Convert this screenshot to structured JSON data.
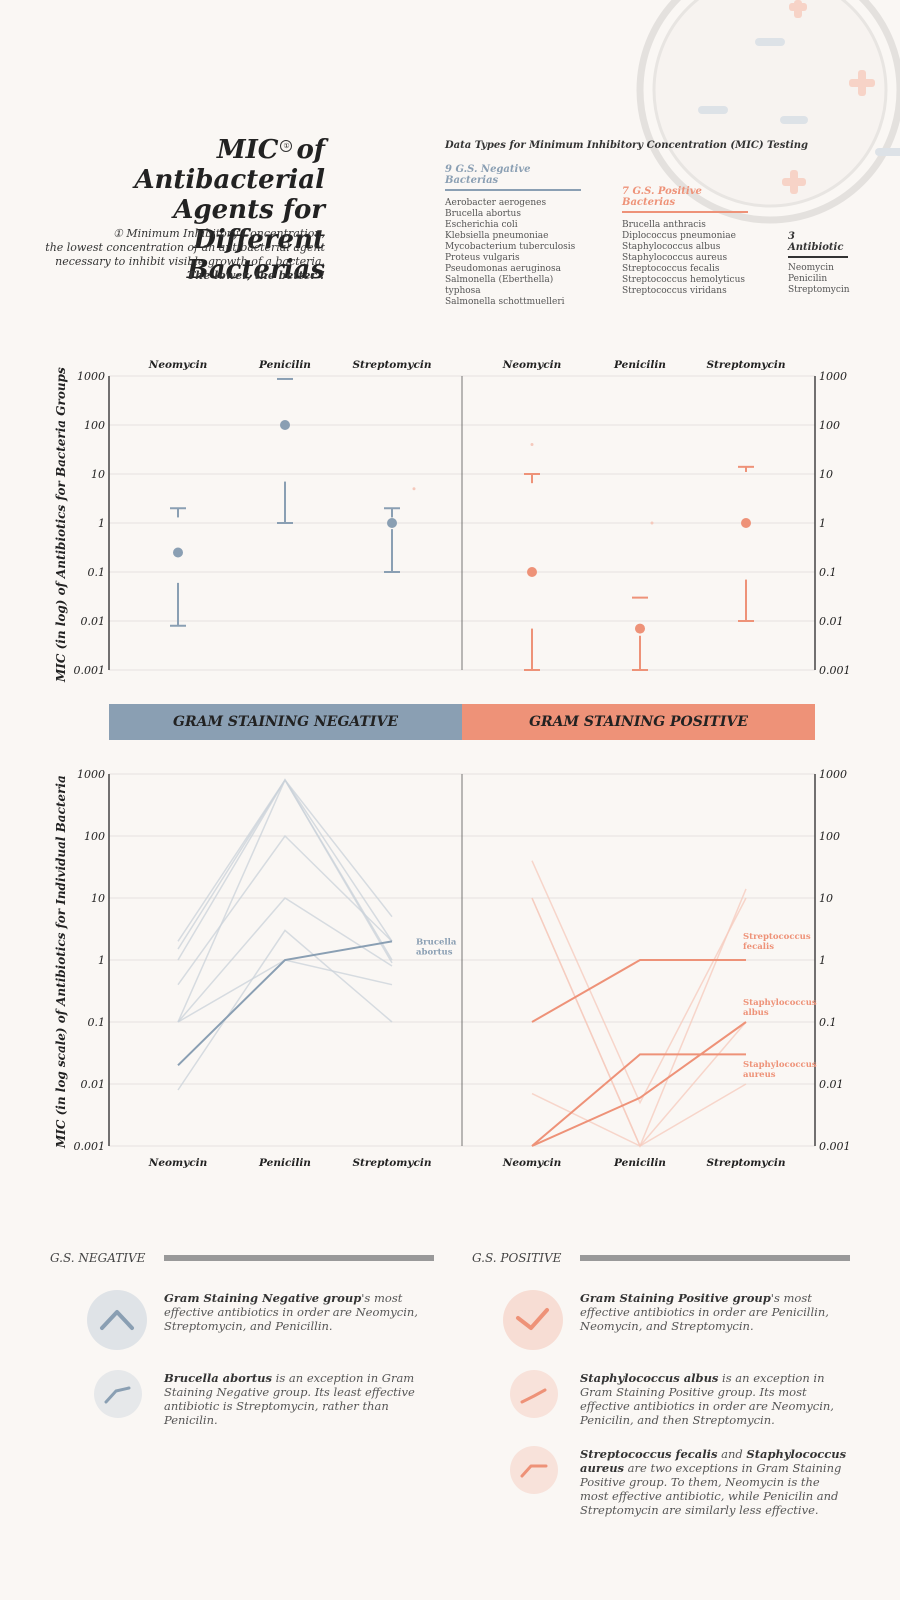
{
  "title": {
    "line1_pre": "MIC",
    "sup_mark": "①",
    "line1_post": "of Antibacterial",
    "line2": "Agents  for Different",
    "line3": "Bacterias"
  },
  "definition": {
    "mark": "①",
    "line1": "Minimum Inhibitory Concentration,",
    "line2": "the lowest concentration of an antibacterial agent",
    "line3": "necessary to inhibit visible growth of a bacteria.",
    "line4": "The lower, the better !"
  },
  "data_types": {
    "title": "Data Types for Minimum Inhibitory Concentration (MIC) Testing",
    "negative": {
      "heading": "9 G.S. Negative Bacterias",
      "items": [
        "Aerobacter aerogenes",
        "Brucella abortus",
        "Escherichia coli",
        "Klebsiella pneumoniae",
        "Mycobacterium tuberculosis",
        "Proteus vulgaris",
        "Pseudomonas aeruginosa",
        "Salmonella (Eberthella) typhosa",
        "Salmonella schottmuelleri"
      ]
    },
    "positive": {
      "heading": "7 G.S. Positive Bacterias",
      "items": [
        "Brucella anthracis",
        "Diplococcus pneumoniae",
        "Staphylococcus albus",
        "Staphylococcus aureus",
        "Streptococcus fecalis",
        "Streptococcus hemolyticus",
        "Streptococcus viridans"
      ]
    },
    "antibiotic": {
      "heading": "3 Antibiotic",
      "items": [
        "Neomycin",
        "Penicilin",
        "Streptomycin"
      ]
    }
  },
  "colors": {
    "negative": "#8a9fb3",
    "positive": "#ee9278",
    "negative_faint": "#c9d2da",
    "positive_faint": "#f5c9bc",
    "background": "#faf7f4"
  },
  "bands": {
    "negative": "GRAM STAINING NEGATIVE",
    "positive": "GRAM STAINING POSITIVE"
  },
  "chart_data": [
    {
      "type": "scatter",
      "subtype": "range-with-median",
      "ylabel": "MIC (in log) of Antibiotics for Bacteria Groups",
      "yscale": "log",
      "ylim": [
        0.001,
        1000
      ],
      "yticks": [
        "1000",
        "100",
        "10",
        "1",
        "0.1",
        "0.01",
        "0.001"
      ],
      "categories": [
        "Neomycin",
        "Penicilin",
        "Streptomycin"
      ],
      "groups": [
        {
          "name": "negative",
          "points": [
            {
              "min": 0.008,
              "q1": 0.06,
              "median": 0.25,
              "q3": 1.3,
              "max": 2
            },
            {
              "min": 1,
              "q1": 7,
              "median": 100,
              "q3": 850,
              "max": 870
            },
            {
              "min": 0.1,
              "q1": 0.75,
              "median": 1,
              "q3": 1.3,
              "max": 2
            }
          ]
        },
        {
          "name": "positive",
          "points": [
            {
              "min": 0.001,
              "q1": 0.007,
              "median": 0.1,
              "q3": 6.5,
              "max": 10
            },
            {
              "min": 0.001,
              "q1": 0.005,
              "median": 0.007,
              "q3": 0.03,
              "max": 0.03
            },
            {
              "min": 0.01,
              "q1": 0.07,
              "median": 1,
              "q3": 11,
              "max": 14
            }
          ]
        }
      ],
      "outliers": [
        {
          "group": "negative",
          "category": "Streptomycin",
          "value": 5
        },
        {
          "group": "positive",
          "category": "Neomycin",
          "value": 40
        },
        {
          "group": "positive",
          "category": "Penicilin",
          "value": 1
        }
      ]
    },
    {
      "type": "line",
      "ylabel": "MIC (in log scale) of Antibiotics for Individual Bacteria",
      "yscale": "log",
      "ylim": [
        0.001,
        1000
      ],
      "yticks": [
        "1000",
        "100",
        "10",
        "1",
        "0.1",
        "0.01",
        "0.001"
      ],
      "categories": [
        "Neomycin",
        "Penicilin",
        "Streptomycin"
      ],
      "negative_series": [
        {
          "values": [
            1.5,
            800,
            2
          ]
        },
        {
          "values": [
            2,
            800,
            5
          ]
        },
        {
          "values": [
            1,
            800,
            0.9
          ]
        },
        {
          "values": [
            0.4,
            100,
            2
          ]
        },
        {
          "values": [
            0.1,
            10,
            0.8
          ]
        },
        {
          "values": [
            0.1,
            1,
            0.4
          ]
        },
        {
          "values": [
            0.008,
            3,
            0.1
          ]
        },
        {
          "values": [
            0.1,
            800,
            1
          ]
        },
        {
          "name": "Brucella abortus",
          "highlight": true,
          "values": [
            0.02,
            1,
            2
          ]
        }
      ],
      "positive_series": [
        {
          "values": [
            40,
            0.005,
            10
          ]
        },
        {
          "values": [
            10,
            0.001,
            14
          ]
        },
        {
          "values": [
            0.007,
            0.001,
            0.01
          ]
        },
        {
          "values": [
            10,
            0.001,
            0.1
          ]
        },
        {
          "name": "Streptococcus fecalis",
          "highlight": true,
          "values": [
            0.1,
            1,
            1
          ]
        },
        {
          "name": "Staphylococcus albus",
          "highlight": true,
          "values": [
            0.001,
            0.006,
            0.1
          ]
        },
        {
          "name": "Staphylococcus aureus",
          "highlight": true,
          "values": [
            0.001,
            0.03,
            0.03
          ]
        }
      ],
      "labels": {
        "negative": [
          "Brucella",
          "abortus"
        ],
        "fecalis": [
          "Streptococcus",
          "fecalis"
        ],
        "albus": [
          "Staphylococcus",
          "albus"
        ],
        "aureus": [
          "Staphylococcus",
          "aureus"
        ]
      }
    }
  ],
  "summary": {
    "negative_header": "G.S. NEGATIVE",
    "positive_header": "G.S. POSITIVE",
    "neg1_bold": "Gram Staining Negative group",
    "neg1_rest": "'s most effective antibiotics in order are Neomycin, Streptomycin, and Penicillin.",
    "neg2_bold": "Brucella abortus",
    "neg2_rest": " is an exception in Gram Staining Negative group. Its least effective antibiotic is Streptomycin, rather than Penicilin.",
    "pos1_bold": "Gram Staining Positive group",
    "pos1_rest": "'s most effective antibiotics in order are Penicillin, Neomycin, and Streptomycin.",
    "pos2_bold": "Staphylococcus albus",
    "pos2_rest": " is an exception in Gram Staining Positive group. Its most effective antibiotics in order are Neomycin, Penicilin, and then Streptomycin.",
    "pos3_bold1": "Streptococcus fecalis",
    "pos3_and": " and ",
    "pos3_bold2": "Staphylococcus aureus",
    "pos3_rest": " are two exceptions in Gram Staining Positive group. To them, Neomycin is the most effective antibiotic, while Penicilin and Streptomycin are similarly less effective."
  }
}
